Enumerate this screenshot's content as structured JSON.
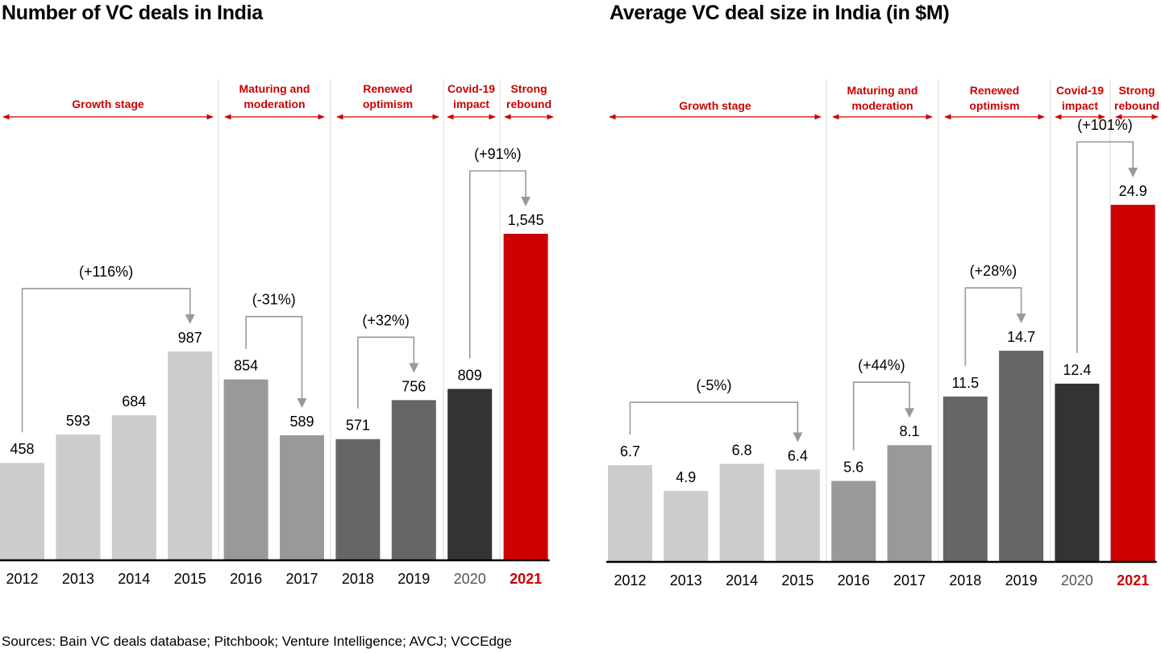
{
  "source": "Sources: Bain VC deals database; Pitchbook; Venture Intelligence; AVCJ; VCCEdge",
  "colors": {
    "growth": "#cccccc",
    "maturing": "#999999",
    "renewed": "#666666",
    "covid": "#333333",
    "rebound": "#cc0000",
    "phase_label": "#cc0000",
    "connector": "#999999",
    "divider": "#d9d9d9",
    "year_2020": "#555555",
    "year_2021": "#cc0000"
  },
  "chart_data": [
    {
      "type": "bar",
      "title": "Number of VC deals in India",
      "xlabel": "",
      "ylabel": "",
      "categories": [
        "2012",
        "2013",
        "2014",
        "2015",
        "2016",
        "2017",
        "2018",
        "2019",
        "2020",
        "2021"
      ],
      "values": [
        458,
        593,
        684,
        987,
        854,
        589,
        571,
        756,
        809,
        1545
      ],
      "value_labels": [
        "458",
        "593",
        "684",
        "987",
        "854",
        "589",
        "571",
        "756",
        "809",
        "1,545"
      ],
      "phases": [
        {
          "label": "Growth stage",
          "from": 0,
          "to": 3,
          "key": "growth"
        },
        {
          "label": "Maturing and moderation",
          "from": 4,
          "to": 5,
          "key": "maturing"
        },
        {
          "label": "Renewed optimism",
          "from": 6,
          "to": 7,
          "key": "renewed"
        },
        {
          "label": "Covid-19 impact",
          "from": 8,
          "to": 8,
          "key": "covid"
        },
        {
          "label": "Strong rebound",
          "from": 9,
          "to": 9,
          "key": "rebound"
        }
      ],
      "changes": [
        {
          "from": 0,
          "to": 3,
          "label": "(+116%)"
        },
        {
          "from": 4,
          "to": 5,
          "label": "(-31%)"
        },
        {
          "from": 6,
          "to": 7,
          "label": "(+32%)"
        },
        {
          "from": 8,
          "to": 9,
          "label": "(+91%)"
        }
      ],
      "ylim": [
        0,
        1800
      ],
      "grid": false,
      "legend": "none"
    },
    {
      "type": "bar",
      "title": "Average VC deal size in India (in $M)",
      "xlabel": "",
      "ylabel": "",
      "categories": [
        "2012",
        "2013",
        "2014",
        "2015",
        "2016",
        "2017",
        "2018",
        "2019",
        "2020",
        "2021"
      ],
      "values": [
        6.7,
        4.9,
        6.8,
        6.4,
        5.6,
        8.1,
        11.5,
        14.7,
        12.4,
        24.9
      ],
      "value_labels": [
        "6.7",
        "4.9",
        "6.8",
        "6.4",
        "5.6",
        "8.1",
        "11.5",
        "14.7",
        "12.4",
        "24.9"
      ],
      "phases": [
        {
          "label": "Growth stage",
          "from": 0,
          "to": 3,
          "key": "growth"
        },
        {
          "label": "Maturing and moderation",
          "from": 4,
          "to": 5,
          "key": "maturing"
        },
        {
          "label": "Renewed optimism",
          "from": 6,
          "to": 7,
          "key": "renewed"
        },
        {
          "label": "Covid-19 impact",
          "from": 8,
          "to": 8,
          "key": "covid"
        },
        {
          "label": "Strong rebound",
          "from": 9,
          "to": 9,
          "key": "rebound"
        }
      ],
      "bar_color_keys": [
        "growth",
        "growth",
        "growth",
        "growth",
        "maturing",
        "maturing",
        "renewed",
        "renewed",
        "covid",
        "rebound"
      ],
      "changes": [
        {
          "from": 0,
          "to": 3,
          "label": "(-5%)"
        },
        {
          "from": 4,
          "to": 5,
          "label": "(+44%)"
        },
        {
          "from": 6,
          "to": 7,
          "label": "(+28%)"
        },
        {
          "from": 8,
          "to": 9,
          "label": "(+101%)"
        }
      ],
      "ylim": [
        0,
        28
      ],
      "grid": false,
      "legend": "none"
    }
  ]
}
